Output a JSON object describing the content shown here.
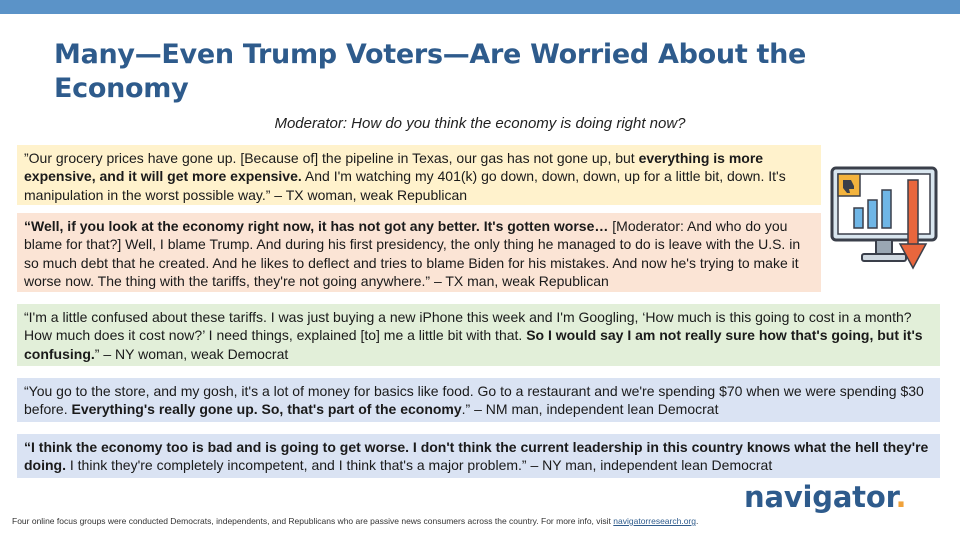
{
  "title": "Many—Even Trump Voters—Are Worried About the Economy",
  "moderator_question": "Moderator: How do you think the economy is doing right now?",
  "quotes": [
    {
      "segments": [
        {
          "text": "”Our grocery prices have gone up. [Because of] the pipeline in Texas, our gas has not gone up, but ",
          "bold": false
        },
        {
          "text": "everything is more expensive, and it will get more expensive.",
          "bold": true
        },
        {
          "text": " And I'm watching my 401(k) go down, down, down, up for a little bit, down. It's manipulation in the worst possible way.” – TX woman, weak Republican",
          "bold": false
        }
      ],
      "color": "#fff2cc"
    },
    {
      "segments": [
        {
          "text": "“Well, if you look at the economy right now, it has not got any better. It's gotten worse…",
          "bold": true
        },
        {
          "text": " [Moderator: And who do you blame for that?] Well, I blame Trump. And during his first presidency, the only thing he managed to do is leave with the U.S. in so much debt that he created. And he likes to deflect and tries to blame Biden for his mistakes. And now he's trying to make it worse now. The thing with the tariffs, they're not going anywhere.” – TX man, weak Republican",
          "bold": false
        }
      ],
      "color": "#fbe4d5"
    },
    {
      "segments": [
        {
          "text": "“I'm a little confused about these tariffs. I was just buying a new iPhone this week and I'm Googling, ‘How much is this going to cost in a month? How much does it cost now?’ I need things, explained [to] me a little bit with that. ",
          "bold": false
        },
        {
          "text": "So I would say I am not really sure how that's going, but it's confusing.",
          "bold": true
        },
        {
          "text": "” – NY woman, weak Democrat",
          "bold": false
        }
      ],
      "color": "#e2efd9"
    },
    {
      "segments": [
        {
          "text": "“You go to the store, and my gosh, it's a lot of money for basics like food. Go to a restaurant and we're spending $70 when we were spending $30 before. ",
          "bold": false
        },
        {
          "text": "Everything's really gone up. So, that's part of the economy",
          "bold": true
        },
        {
          "text": ".” – NM man, independent lean Democrat",
          "bold": false
        }
      ],
      "color": "#dae3f3"
    },
    {
      "segments": [
        {
          "text": "“I think the economy too is bad and is going to get worse. I don't think the current leadership in this country knows what the hell they're doing.",
          "bold": true
        },
        {
          "text": " I think they're completely incompetent, and I think that's a major problem.” – NY man, independent lean Democrat",
          "bold": false
        }
      ],
      "color": "#dae3f3"
    }
  ],
  "icon": "falling-chart-monitor-icon",
  "logo": {
    "text": "navigator",
    "dot": "."
  },
  "footer": {
    "text": "Four online focus groups were conducted Democrats, independents, and Republicans who are passive news consumers across the country. For more info, visit ",
    "link_text": "navigatorresearch.org",
    "end": "."
  }
}
